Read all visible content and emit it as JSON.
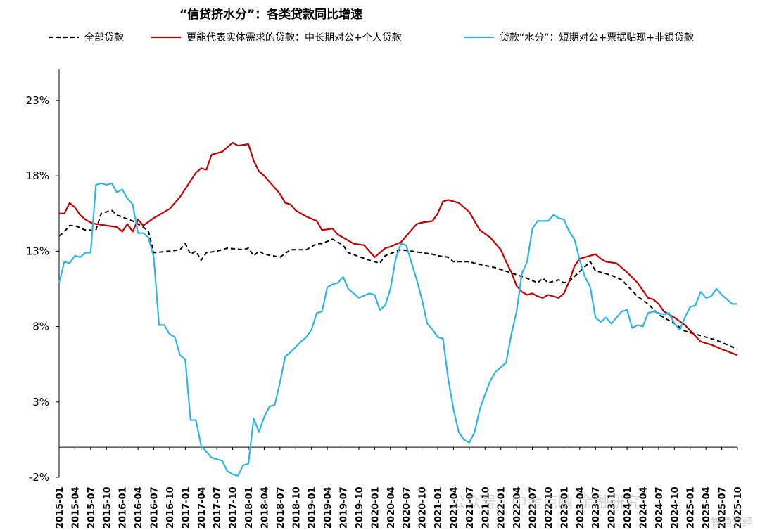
{
  "chart_data": {
    "type": "line",
    "title": "“信贷挤水分”：各类贷款同比增速",
    "xlabel": "",
    "ylabel": "",
    "ylim": [
      -2,
      25
    ],
    "yticks": [
      -2,
      3,
      8,
      13,
      18,
      23
    ],
    "ytick_labels": [
      "-2%",
      "3%",
      "8%",
      "13%",
      "18%",
      "23%"
    ],
    "x_start": "2015-01",
    "x_end": "2025-10",
    "xtick_labels": [
      "2015-01",
      "2015-04",
      "2015-07",
      "2015-10",
      "2016-01",
      "2016-04",
      "2016-07",
      "2016-10",
      "2017-01",
      "2017-04",
      "2017-07",
      "2017-10",
      "2018-01",
      "2018-04",
      "2018-07",
      "2018-10",
      "2019-01",
      "2019-04",
      "2019-07",
      "2019-10",
      "2020-01",
      "2020-04",
      "2020-07",
      "2020-10",
      "2021-01",
      "2021-04",
      "2021-07",
      "2021-10",
      "2022-01",
      "2022-04",
      "2022-07",
      "2022-10",
      "2023-01",
      "2023-04",
      "2023-07",
      "2023-10",
      "2024-01",
      "2024-04",
      "2024-07",
      "2024-10",
      "2025-01",
      "2025-04",
      "2025-07",
      "2025-10"
    ],
    "grid": false,
    "legend_position": "top",
    "series": [
      {
        "name": "全部贷款",
        "color": "#000000",
        "style": "dashed",
        "anchors": [
          [
            "2015-01",
            14.0
          ],
          [
            "2015-02",
            14.3
          ],
          [
            "2015-03",
            14.7
          ],
          [
            "2015-04",
            14.7
          ],
          [
            "2015-06",
            14.4
          ],
          [
            "2015-07",
            14.4
          ],
          [
            "2015-08",
            14.4
          ],
          [
            "2015-09",
            15.5
          ],
          [
            "2015-11",
            15.7
          ],
          [
            "2015-12",
            15.4
          ],
          [
            "2016-03",
            15.0
          ],
          [
            "2016-05",
            14.6
          ],
          [
            "2016-06",
            14.3
          ],
          [
            "2016-07",
            12.9
          ],
          [
            "2016-10",
            13.0
          ],
          [
            "2016-12",
            13.1
          ],
          [
            "2017-01",
            13.5
          ],
          [
            "2017-02",
            12.8
          ],
          [
            "2017-03",
            13.0
          ],
          [
            "2017-04",
            12.4
          ],
          [
            "2017-05",
            12.9
          ],
          [
            "2017-07",
            13.0
          ],
          [
            "2017-09",
            13.2
          ],
          [
            "2017-12",
            13.1
          ],
          [
            "2018-01",
            13.2
          ],
          [
            "2018-02",
            12.7
          ],
          [
            "2018-03",
            13.0
          ],
          [
            "2018-04",
            12.8
          ],
          [
            "2018-07",
            12.6
          ],
          [
            "2018-09",
            13.1
          ],
          [
            "2018-12",
            13.1
          ],
          [
            "2019-02",
            13.5
          ],
          [
            "2019-03",
            13.5
          ],
          [
            "2019-05",
            13.8
          ],
          [
            "2019-06",
            13.6
          ],
          [
            "2019-07",
            13.4
          ],
          [
            "2019-08",
            12.9
          ],
          [
            "2019-12",
            12.4
          ],
          [
            "2020-02",
            12.2
          ],
          [
            "2020-03",
            12.7
          ],
          [
            "2020-06",
            13.1
          ],
          [
            "2020-08",
            13.0
          ],
          [
            "2020-12",
            12.8
          ],
          [
            "2021-01",
            12.7
          ],
          [
            "2021-03",
            12.6
          ],
          [
            "2021-04",
            12.3
          ],
          [
            "2021-07",
            12.3
          ],
          [
            "2021-08",
            12.2
          ],
          [
            "2021-12",
            11.9
          ],
          [
            "2022-06",
            11.2
          ],
          [
            "2022-08",
            10.9
          ],
          [
            "2022-09",
            11.2
          ],
          [
            "2022-10",
            10.9
          ],
          [
            "2022-12",
            11.1
          ],
          [
            "2023-01",
            10.9
          ],
          [
            "2023-02",
            11.0
          ],
          [
            "2023-06",
            12.3
          ],
          [
            "2023-07",
            11.7
          ],
          [
            "2023-10",
            11.4
          ],
          [
            "2023-12",
            11.1
          ],
          [
            "2024-03",
            10.0
          ],
          [
            "2024-05",
            9.5
          ],
          [
            "2024-07",
            8.8
          ],
          [
            "2024-10",
            8.2
          ],
          [
            "2024-12",
            7.7
          ],
          [
            "2025-06",
            7.1
          ],
          [
            "2025-10",
            6.5
          ]
        ]
      },
      {
        "name": "更能代表实体需求的贷款：中长期对公+个人贷款",
        "color": "#C00000",
        "style": "solid",
        "anchors": [
          [
            "2015-01",
            15.5
          ],
          [
            "2015-02",
            15.5
          ],
          [
            "2015-03",
            16.2
          ],
          [
            "2015-04",
            15.9
          ],
          [
            "2015-05",
            15.4
          ],
          [
            "2015-06",
            15.1
          ],
          [
            "2015-07",
            14.9
          ],
          [
            "2015-08",
            14.8
          ],
          [
            "2015-10",
            14.7
          ],
          [
            "2015-12",
            14.6
          ],
          [
            "2016-01",
            14.3
          ],
          [
            "2016-02",
            14.8
          ],
          [
            "2016-03",
            14.3
          ],
          [
            "2016-04",
            15.1
          ],
          [
            "2016-05",
            14.7
          ],
          [
            "2016-07",
            15.2
          ],
          [
            "2016-10",
            15.8
          ],
          [
            "2016-12",
            16.6
          ],
          [
            "2017-03",
            18.2
          ],
          [
            "2017-04",
            18.5
          ],
          [
            "2017-05",
            18.4
          ],
          [
            "2017-06",
            19.4
          ],
          [
            "2017-08",
            19.6
          ],
          [
            "2017-10",
            20.2
          ],
          [
            "2017-11",
            20.0
          ],
          [
            "2018-01",
            20.1
          ],
          [
            "2018-02",
            19.0
          ],
          [
            "2018-03",
            18.3
          ],
          [
            "2018-04",
            18.0
          ],
          [
            "2018-07",
            16.8
          ],
          [
            "2018-08",
            16.2
          ],
          [
            "2018-09",
            16.1
          ],
          [
            "2018-10",
            15.7
          ],
          [
            "2018-12",
            15.3
          ],
          [
            "2019-02",
            15.0
          ],
          [
            "2019-03",
            14.4
          ],
          [
            "2019-05",
            14.5
          ],
          [
            "2019-06",
            14.1
          ],
          [
            "2019-09",
            13.5
          ],
          [
            "2019-11",
            13.4
          ],
          [
            "2020-01",
            12.6
          ],
          [
            "2020-02",
            12.9
          ],
          [
            "2020-03",
            13.2
          ],
          [
            "2020-04",
            13.3
          ],
          [
            "2020-06",
            13.6
          ],
          [
            "2020-09",
            14.8
          ],
          [
            "2020-10",
            14.9
          ],
          [
            "2020-12",
            15.0
          ],
          [
            "2021-01",
            15.5
          ],
          [
            "2021-02",
            16.3
          ],
          [
            "2021-03",
            16.4
          ],
          [
            "2021-05",
            16.2
          ],
          [
            "2021-07",
            15.6
          ],
          [
            "2021-09",
            14.4
          ],
          [
            "2021-11",
            13.9
          ],
          [
            "2022-01",
            13.1
          ],
          [
            "2022-02",
            12.3
          ],
          [
            "2022-03",
            11.6
          ],
          [
            "2022-04",
            10.7
          ],
          [
            "2022-05",
            10.3
          ],
          [
            "2022-06",
            10.1
          ],
          [
            "2022-07",
            10.2
          ],
          [
            "2022-08",
            10.0
          ],
          [
            "2022-09",
            9.9
          ],
          [
            "2022-10",
            10.1
          ],
          [
            "2022-12",
            9.9
          ],
          [
            "2023-01",
            10.2
          ],
          [
            "2023-02",
            11.0
          ],
          [
            "2023-03",
            12.0
          ],
          [
            "2023-04",
            12.5
          ],
          [
            "2023-05",
            12.6
          ],
          [
            "2023-06",
            12.7
          ],
          [
            "2023-07",
            12.8
          ],
          [
            "2023-08",
            12.5
          ],
          [
            "2023-09",
            12.3
          ],
          [
            "2023-11",
            12.2
          ],
          [
            "2023-12",
            11.9
          ],
          [
            "2024-01",
            11.6
          ],
          [
            "2024-03",
            10.9
          ],
          [
            "2024-05",
            9.9
          ],
          [
            "2024-06",
            9.8
          ],
          [
            "2024-07",
            9.5
          ],
          [
            "2024-08",
            9.0
          ],
          [
            "2024-10",
            8.6
          ],
          [
            "2024-12",
            8.1
          ],
          [
            "2025-03",
            7.0
          ],
          [
            "2025-05",
            6.8
          ],
          [
            "2025-07",
            6.5
          ],
          [
            "2025-10",
            6.1
          ]
        ]
      },
      {
        "name": "贷款“水分”：短期对公+票据贴现+非银贷款",
        "color": "#2EB4E6",
        "style": "solid",
        "anchors": [
          [
            "2015-01",
            10.9
          ],
          [
            "2015-02",
            12.3
          ],
          [
            "2015-03",
            12.2
          ],
          [
            "2015-04",
            12.7
          ],
          [
            "2015-05",
            12.6
          ],
          [
            "2015-06",
            12.9
          ],
          [
            "2015-07",
            12.9
          ],
          [
            "2015-08",
            17.4
          ],
          [
            "2015-09",
            17.5
          ],
          [
            "2015-10",
            17.4
          ],
          [
            "2015-11",
            17.5
          ],
          [
            "2015-12",
            16.9
          ],
          [
            "2016-01",
            17.1
          ],
          [
            "2016-02",
            16.5
          ],
          [
            "2016-03",
            16.1
          ],
          [
            "2016-04",
            14.2
          ],
          [
            "2016-05",
            14.2
          ],
          [
            "2016-06",
            13.9
          ],
          [
            "2016-07",
            12.6
          ],
          [
            "2016-08",
            8.1
          ],
          [
            "2016-09",
            8.1
          ],
          [
            "2016-10",
            7.5
          ],
          [
            "2016-11",
            7.3
          ],
          [
            "2016-12",
            6.1
          ],
          [
            "2017-01",
            5.8
          ],
          [
            "2017-02",
            1.8
          ],
          [
            "2017-03",
            1.8
          ],
          [
            "2017-04",
            0.1
          ],
          [
            "2017-06",
            -0.7
          ],
          [
            "2017-08",
            -0.9
          ],
          [
            "2017-09",
            -1.6
          ],
          [
            "2017-10",
            -1.8
          ],
          [
            "2017-11",
            -1.9
          ],
          [
            "2017-12",
            -1.2
          ],
          [
            "2018-01",
            -1.1
          ],
          [
            "2018-02",
            1.9
          ],
          [
            "2018-03",
            1.0
          ],
          [
            "2018-04",
            2.0
          ],
          [
            "2018-05",
            2.7
          ],
          [
            "2018-06",
            2.8
          ],
          [
            "2018-07",
            4.3
          ],
          [
            "2018-08",
            6.0
          ],
          [
            "2018-09",
            6.3
          ],
          [
            "2018-11",
            7.0
          ],
          [
            "2018-12",
            7.3
          ],
          [
            "2019-01",
            7.8
          ],
          [
            "2019-02",
            8.9
          ],
          [
            "2019-03",
            9.0
          ],
          [
            "2019-04",
            10.6
          ],
          [
            "2019-05",
            10.8
          ],
          [
            "2019-06",
            10.9
          ],
          [
            "2019-07",
            11.3
          ],
          [
            "2019-08",
            10.5
          ],
          [
            "2019-10",
            9.9
          ],
          [
            "2019-12",
            10.2
          ],
          [
            "2020-01",
            10.1
          ],
          [
            "2020-02",
            9.1
          ],
          [
            "2020-03",
            9.4
          ],
          [
            "2020-04",
            10.5
          ],
          [
            "2020-05",
            12.5
          ],
          [
            "2020-06",
            13.5
          ],
          [
            "2020-07",
            13.4
          ],
          [
            "2020-09",
            11.1
          ],
          [
            "2020-10",
            9.8
          ],
          [
            "2020-11",
            8.2
          ],
          [
            "2020-12",
            7.8
          ],
          [
            "2021-01",
            7.3
          ],
          [
            "2021-02",
            7.2
          ],
          [
            "2021-03",
            4.5
          ],
          [
            "2021-04",
            2.5
          ],
          [
            "2021-05",
            1.0
          ],
          [
            "2021-06",
            0.5
          ],
          [
            "2021-07",
            0.3
          ],
          [
            "2021-08",
            1.0
          ],
          [
            "2021-09",
            2.5
          ],
          [
            "2021-10",
            3.5
          ],
          [
            "2021-11",
            4.4
          ],
          [
            "2021-12",
            5.0
          ],
          [
            "2022-01",
            5.3
          ],
          [
            "2022-02",
            5.6
          ],
          [
            "2022-03",
            7.5
          ],
          [
            "2022-04",
            9.0
          ],
          [
            "2022-05",
            11.5
          ],
          [
            "2022-06",
            12.3
          ],
          [
            "2022-07",
            14.5
          ],
          [
            "2022-08",
            15.0
          ],
          [
            "2022-10",
            15.0
          ],
          [
            "2022-11",
            15.4
          ],
          [
            "2022-12",
            15.2
          ],
          [
            "2023-01",
            15.1
          ],
          [
            "2023-02",
            14.3
          ],
          [
            "2023-03",
            13.8
          ],
          [
            "2023-04",
            12.4
          ],
          [
            "2023-05",
            11.3
          ],
          [
            "2023-06",
            10.6
          ],
          [
            "2023-07",
            8.6
          ],
          [
            "2023-08",
            8.3
          ],
          [
            "2023-09",
            8.6
          ],
          [
            "2023-10",
            8.2
          ],
          [
            "2023-11",
            8.6
          ],
          [
            "2023-12",
            9.0
          ],
          [
            "2024-01",
            9.1
          ],
          [
            "2024-02",
            7.9
          ],
          [
            "2024-03",
            8.1
          ],
          [
            "2024-04",
            8.0
          ],
          [
            "2024-05",
            8.9
          ],
          [
            "2024-06",
            9.0
          ],
          [
            "2024-07",
            8.9
          ],
          [
            "2024-08",
            8.8
          ],
          [
            "2024-09",
            8.9
          ],
          [
            "2024-10",
            8.2
          ],
          [
            "2024-11",
            7.8
          ],
          [
            "2024-12",
            8.6
          ],
          [
            "2025-01",
            9.3
          ],
          [
            "2025-02",
            9.4
          ],
          [
            "2025-03",
            10.3
          ],
          [
            "2025-04",
            9.9
          ],
          [
            "2025-05",
            10.0
          ],
          [
            "2025-06",
            10.5
          ],
          [
            "2025-07",
            10.1
          ],
          [
            "2025-08",
            9.8
          ],
          [
            "2025-09",
            9.5
          ],
          [
            "2025-10",
            9.5
          ]
        ]
      }
    ]
  },
  "watermark": {
    "text": "公众号 · 中金点睛 金融研究",
    "corner_text": "智通财经"
  }
}
